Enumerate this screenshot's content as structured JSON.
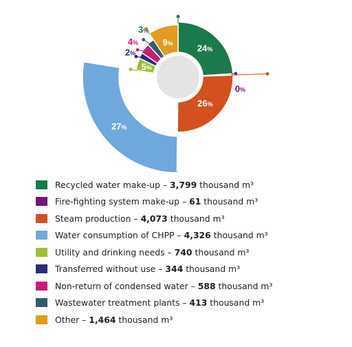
{
  "chart_data": {
    "type": "pie",
    "variant": "exploded-donut",
    "unit": "thousand m³",
    "slices": [
      {
        "label": "Recycled water make-up",
        "value": 3799,
        "percent_label": "24",
        "color": "#1b7a4c"
      },
      {
        "label": "Fire-fighting system make-up",
        "value": 61,
        "percent_label": "0",
        "color": "#6e1a78"
      },
      {
        "label": "Steam production",
        "value": 4073,
        "percent_label": "26",
        "color": "#d4501f"
      },
      {
        "label": "Water consumption of CHPP",
        "value": 4326,
        "percent_label": "27",
        "color": "#6fa8dc"
      },
      {
        "label": "Utility and drinking needs",
        "value": 740,
        "percent_label": "5",
        "color": "#9bbf35"
      },
      {
        "label": "Transferred without use",
        "value": 344,
        "percent_label": "2",
        "color": "#2b2c7a"
      },
      {
        "label": "Non-return of condensed water",
        "value": 588,
        "percent_label": "4",
        "color": "#c91b7b"
      },
      {
        "label": "Wastewater treatment plants",
        "value": 413,
        "percent_label": "3",
        "color": "#2f5e6b"
      },
      {
        "label": "Other",
        "value": 1464,
        "percent_label": "9",
        "color": "#e39a1f"
      }
    ],
    "percent_sign": "%",
    "legend_position": "bottom",
    "legend_items": [
      {
        "pre": "Recycled water make-up – ",
        "bold": "3,799",
        "post": " thousand m³",
        "color": "#1b7a4c"
      },
      {
        "pre": "Fire-fighting system make-up – ",
        "bold": "61",
        "post": " thousand m³",
        "color": "#6e1a78"
      },
      {
        "pre": "Steam production – ",
        "bold": "4,073",
        "post": " thousand m³",
        "color": "#d4501f"
      },
      {
        "pre": "Water consumption of CHPP – ",
        "bold": "4,326",
        "post": " thousand m³",
        "color": "#6fa8dc"
      },
      {
        "pre": "Utility and drinking needs – ",
        "bold": "740",
        "post": " thousand m³",
        "color": "#9bbf35"
      },
      {
        "pre": "Transferred without use – ",
        "bold": "344",
        "post": " thousand m³",
        "color": "#2b2c7a"
      },
      {
        "pre": "Non-return of condensed water – ",
        "bold": "588",
        "post": " thousand m³",
        "color": "#c91b7b"
      },
      {
        "pre": "Wastewater treatment plants – ",
        "bold": "413",
        "post": " thousand m³",
        "color": "#2f5e6b"
      },
      {
        "pre": "Other – ",
        "bold": "1,464",
        "post": " thousand m³",
        "color": "#e39a1f"
      }
    ]
  }
}
